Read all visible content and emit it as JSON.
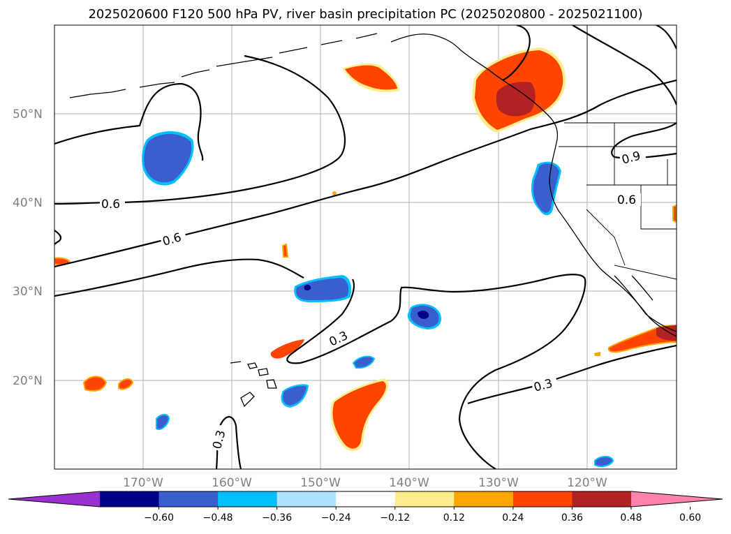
{
  "title": "2025020600 F120 500 hPa PV, river basin precipitation PC (2025020800 - 2025021100)",
  "map": {
    "lat_labels": [
      "50°N",
      "40°N",
      "30°N",
      "20°N"
    ],
    "lon_labels": [
      "170°W",
      "160°W",
      "150°W",
      "140°W",
      "130°W",
      "120°W"
    ],
    "pv_contour_labels": [
      "0.6",
      "0.6",
      "0.6",
      "0.9",
      "0.3",
      "0.3",
      "0.3"
    ],
    "gridlines": true
  },
  "colorbar": {
    "ticks": [
      "−0.60",
      "−0.48",
      "−0.36",
      "−0.24",
      "−0.12",
      "0.12",
      "0.24",
      "0.36",
      "0.48",
      "0.60"
    ],
    "colors": [
      "#9b30d0",
      "#00008b",
      "#3a5fcd",
      "#00bfff",
      "#b0e2ff",
      "#ffffff",
      "#ffec8b",
      "#ffa500",
      "#ff4500",
      "#b22222",
      "#ff82ab"
    ]
  },
  "shading_colors": {
    "dark_blue": "#00008b",
    "blue": "#3a5fcd",
    "cyan": "#00bfff",
    "light_blue": "#b0e2ff",
    "yellow": "#ffec8b",
    "orange": "#ffa500",
    "red_orange": "#ff4500",
    "dark_red": "#b22222"
  }
}
